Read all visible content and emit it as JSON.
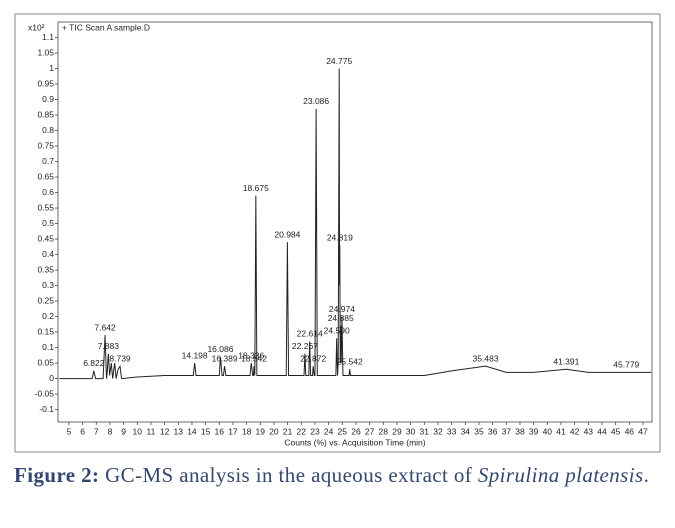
{
  "chart_data": {
    "type": "line",
    "title": "+ TIC Scan A sample.D",
    "y_multiplier": "x10²",
    "x_label": "Counts (%) vs. Acquisition Time (min)",
    "xlim": [
      4.2,
      47.66
    ],
    "ylim": [
      -0.14,
      1.15
    ],
    "xticks": [
      5,
      6,
      7,
      8,
      9,
      10,
      11,
      12,
      13,
      14,
      15,
      16,
      17,
      18,
      19,
      20,
      21,
      22,
      23,
      24,
      25,
      26,
      27,
      28,
      29,
      30,
      31,
      32,
      33,
      34,
      35,
      36,
      37,
      38,
      39,
      40,
      41,
      42,
      43,
      44,
      45,
      46,
      47
    ],
    "yticks": [
      -0.1,
      -0.05,
      0,
      0.05,
      0.1,
      0.15,
      0.2,
      0.25,
      0.3,
      0.35,
      0.4,
      0.45,
      0.5,
      0.55,
      0.6,
      0.65,
      0.7,
      0.75,
      0.8,
      0.85,
      0.9,
      0.95,
      1,
      1.05,
      1.1
    ],
    "series": [
      {
        "color": "#222222",
        "x": [
          4.3,
          6.7,
          6.82,
          6.95,
          7.5,
          7.642,
          7.75,
          7.8,
          7.883,
          7.98,
          8.1,
          8.2,
          8.35,
          8.45,
          8.6,
          8.739,
          8.85,
          10,
          12,
          14.1,
          14.198,
          14.3,
          16,
          16.086,
          16.2,
          16.3,
          16.389,
          16.48,
          18.25,
          18.336,
          18.45,
          18.5,
          18.542,
          18.6,
          18.675,
          18.75,
          20.9,
          20.984,
          21.07,
          22.2,
          22.267,
          22.33,
          22.55,
          22.614,
          22.68,
          22.82,
          22.872,
          22.95,
          23,
          23.086,
          23.17,
          24.53,
          24.59,
          24.65,
          24.7,
          24.775,
          24.8,
          24.819,
          24.85,
          24.885,
          24.92,
          24.974,
          25.05,
          25.5,
          25.542,
          25.6,
          28,
          31,
          33,
          35.483,
          37,
          39,
          41.391,
          43,
          45.779,
          47.6
        ],
        "values": [
          0,
          0,
          0.025,
          0,
          0,
          0.14,
          0,
          0.02,
          0.08,
          0.01,
          0.05,
          0,
          0.05,
          0,
          0.03,
          0.04,
          0,
          0.005,
          0.01,
          0.01,
          0.05,
          0.01,
          0.01,
          0.07,
          0.01,
          0.01,
          0.04,
          0.01,
          0.01,
          0.05,
          0.01,
          0.01,
          0.04,
          0.01,
          0.59,
          0.01,
          0.01,
          0.44,
          0.01,
          0.01,
          0.08,
          0.01,
          0.01,
          0.12,
          0.01,
          0.01,
          0.04,
          0.01,
          0.01,
          0.87,
          0.01,
          0.01,
          0.13,
          0.01,
          0.05,
          1.0,
          0.3,
          0.43,
          0.05,
          0.17,
          0.05,
          0.2,
          0.01,
          0.01,
          0.03,
          0.01,
          0.01,
          0.01,
          0.025,
          0.04,
          0.02,
          0.02,
          0.03,
          0.02,
          0.02,
          0.02
        ]
      }
    ],
    "peaks": [
      {
        "label": "6.822",
        "x": 6.822,
        "y": 0.025
      },
      {
        "label": "7.642",
        "x": 7.642,
        "y": 0.14
      },
      {
        "label": "7.883",
        "x": 7.883,
        "y": 0.08
      },
      {
        "label": "8.739",
        "x": 8.739,
        "y": 0.04
      },
      {
        "label": "14.198",
        "x": 14.198,
        "y": 0.05
      },
      {
        "label": "16.086",
        "x": 16.086,
        "y": 0.07
      },
      {
        "label": "16.389",
        "x": 16.389,
        "y": 0.04
      },
      {
        "label": "18.336",
        "x": 18.336,
        "y": 0.05
      },
      {
        "label": "18.542",
        "x": 18.542,
        "y": 0.04
      },
      {
        "label": "18.675",
        "x": 18.675,
        "y": 0.59
      },
      {
        "label": "20.984",
        "x": 20.984,
        "y": 0.44
      },
      {
        "label": "22.267",
        "x": 22.267,
        "y": 0.08
      },
      {
        "label": "22.614",
        "x": 22.614,
        "y": 0.12
      },
      {
        "label": "22.872",
        "x": 22.872,
        "y": 0.04
      },
      {
        "label": "23.086",
        "x": 23.086,
        "y": 0.87
      },
      {
        "label": "24.590",
        "x": 24.59,
        "y": 0.13
      },
      {
        "label": "24.775",
        "x": 24.775,
        "y": 1.0
      },
      {
        "label": "24.819",
        "x": 24.819,
        "y": 0.43
      },
      {
        "label": "24.885",
        "x": 24.885,
        "y": 0.17
      },
      {
        "label": "24.974",
        "x": 24.974,
        "y": 0.2
      },
      {
        "label": "25.542",
        "x": 25.542,
        "y": 0.03
      },
      {
        "label": "35.483",
        "x": 35.483,
        "y": 0.04
      },
      {
        "label": "41.391",
        "x": 41.391,
        "y": 0.03
      },
      {
        "label": "45.779",
        "x": 45.779,
        "y": 0.02
      }
    ]
  },
  "caption": {
    "label": "Figure 2:",
    "text": " GC-MS analysis in the aqueous extract of ",
    "species": "Spirulina platensis",
    "end": "."
  }
}
